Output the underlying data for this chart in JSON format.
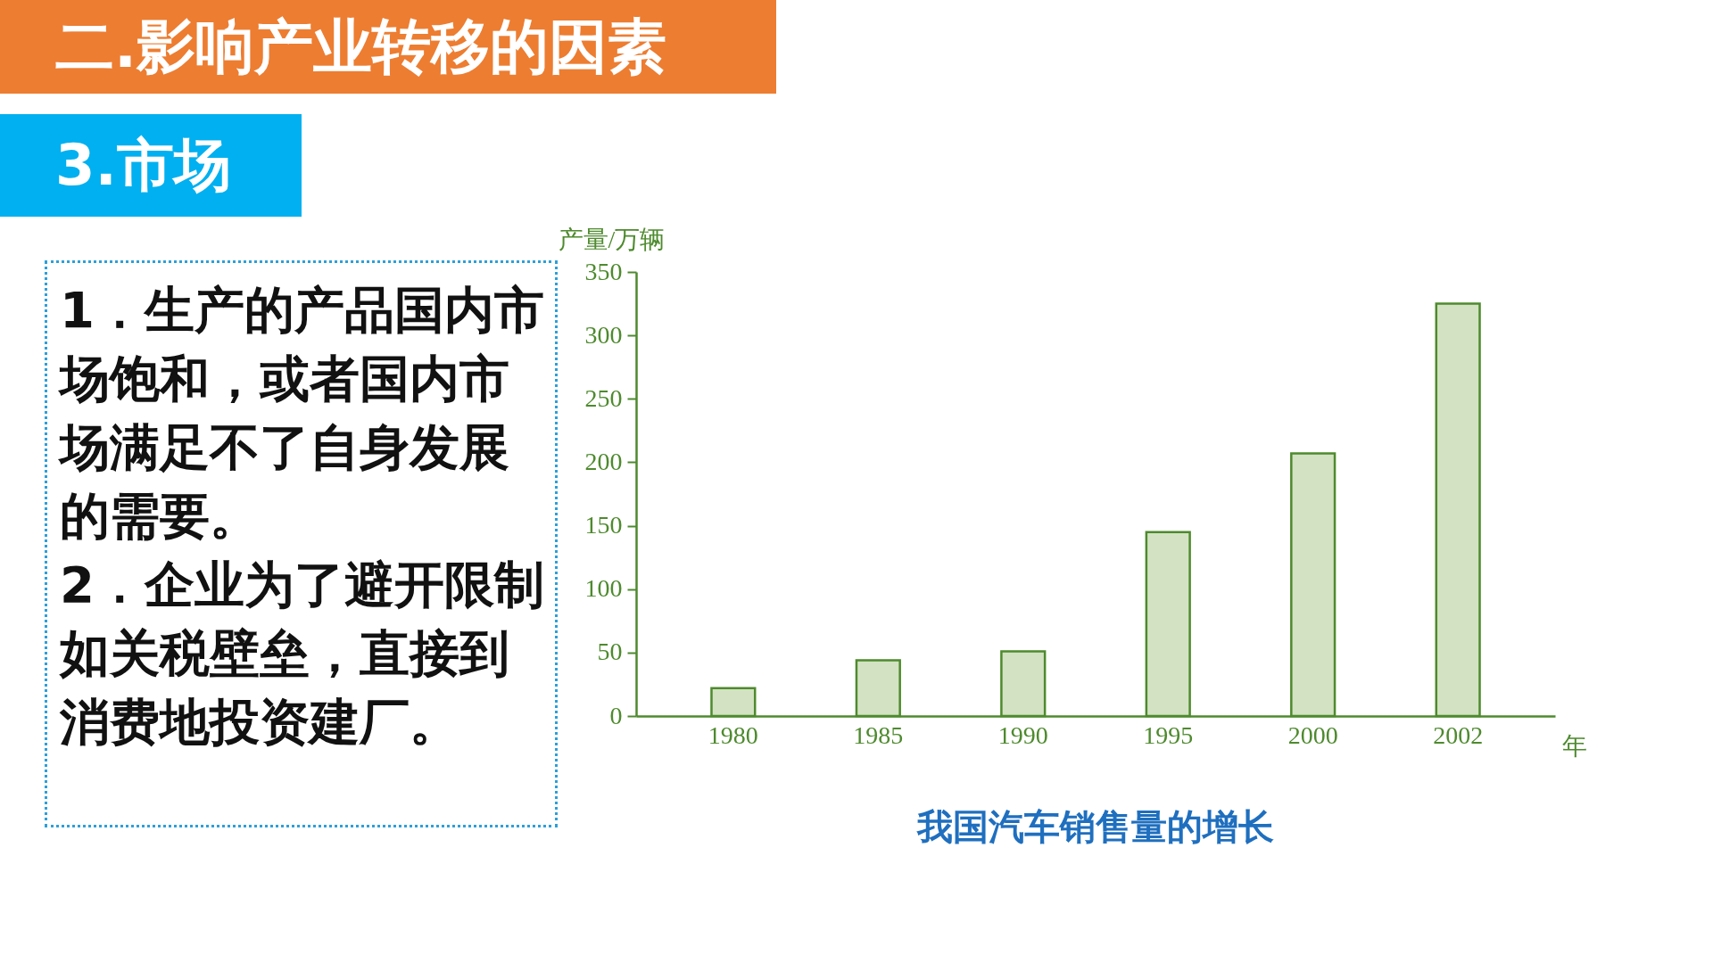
{
  "chart_data": {
    "type": "bar",
    "title": "我国汽车销售量的增长",
    "xlabel": "年",
    "ylabel": "产量/万辆",
    "categories": [
      "1980",
      "1985",
      "1990",
      "1995",
      "2000",
      "2002"
    ],
    "values": [
      22,
      44,
      51,
      145,
      207,
      325
    ],
    "color": "#d3e2c3",
    "ylim": [
      0,
      350
    ],
    "yticks": [
      0,
      50,
      100,
      150,
      200,
      250,
      300,
      350
    ],
    "grid": false,
    "annotations": [
      "二.影响产业转移的因素",
      "3.市场",
      "1．生产的产品国内市场饱和，或者国内市场满足不了自身发展的需要。",
      "2．企业为了避开限制如关税壁垒，直接到消费地投资建厂。"
    ]
  }
}
